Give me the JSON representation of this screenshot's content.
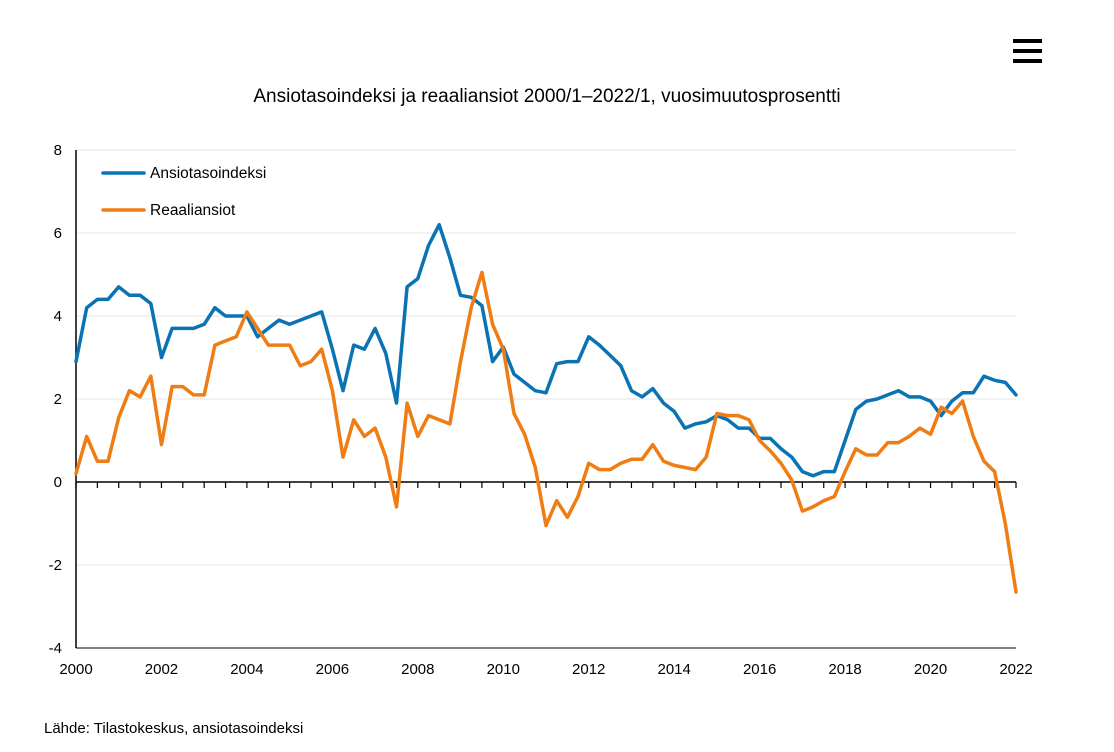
{
  "menu": {
    "icon": "hamburger-menu-icon"
  },
  "source": "Lähde: Tilastokeskus, ansiotasoindeksi",
  "chart_data": {
    "type": "line",
    "title": "Ansiotasoindeksi ja reaaliansiot 2000/1–2022/1, vuosimuutosprosentti",
    "xlabel": "",
    "ylabel": "",
    "xlim": [
      2000,
      2022
    ],
    "ylim": [
      -4,
      8
    ],
    "yticks": [
      -4,
      -2,
      0,
      2,
      4,
      6,
      8
    ],
    "xticks": [
      2000,
      2002,
      2004,
      2006,
      2008,
      2010,
      2012,
      2014,
      2016,
      2018,
      2020,
      2022
    ],
    "grid": "horizontal",
    "legend_position": "top-left",
    "series": [
      {
        "name": "Ansiotasoindeksi",
        "color": "#0a73b4",
        "x": [
          2000,
          2000.25,
          2000.5,
          2000.75,
          2001,
          2001.25,
          2001.5,
          2001.75,
          2002,
          2002.25,
          2002.5,
          2002.75,
          2003,
          2003.25,
          2003.5,
          2003.75,
          2004,
          2004.25,
          2004.5,
          2004.75,
          2005,
          2005.25,
          2005.5,
          2005.75,
          2006,
          2006.25,
          2006.5,
          2006.75,
          2007,
          2007.25,
          2007.5,
          2007.75,
          2008,
          2008.25,
          2008.5,
          2008.75,
          2009,
          2009.25,
          2009.5,
          2009.75,
          2010,
          2010.25,
          2010.5,
          2010.75,
          2011,
          2011.25,
          2011.5,
          2011.75,
          2012,
          2012.25,
          2012.5,
          2012.75,
          2013,
          2013.25,
          2013.5,
          2013.75,
          2014,
          2014.25,
          2014.5,
          2014.75,
          2015,
          2015.25,
          2015.5,
          2015.75,
          2016,
          2016.25,
          2016.5,
          2016.75,
          2017,
          2017.25,
          2017.5,
          2017.75,
          2018,
          2018.25,
          2018.5,
          2018.75,
          2019,
          2019.25,
          2019.5,
          2019.75,
          2020,
          2020.25,
          2020.5,
          2020.75,
          2021,
          2021.25,
          2021.5,
          2021.75,
          2022
        ],
        "values": [
          2.9,
          4.2,
          4.4,
          4.4,
          4.7,
          4.5,
          4.5,
          4.3,
          3.0,
          3.7,
          3.7,
          3.7,
          3.8,
          4.2,
          4.0,
          4.0,
          4.0,
          3.5,
          3.7,
          3.9,
          3.8,
          3.9,
          4.0,
          4.1,
          3.2,
          2.2,
          3.3,
          3.2,
          3.7,
          3.1,
          1.9,
          4.7,
          4.9,
          5.7,
          6.2,
          5.4,
          4.5,
          4.45,
          4.25,
          2.9,
          3.25,
          2.6,
          2.4,
          2.2,
          2.15,
          2.85,
          2.9,
          2.9,
          3.5,
          3.3,
          3.05,
          2.8,
          2.2,
          2.05,
          2.25,
          1.9,
          1.7,
          1.3,
          1.4,
          1.45,
          1.6,
          1.5,
          1.3,
          1.3,
          1.05,
          1.05,
          0.8,
          0.6,
          0.25,
          0.15,
          0.25,
          0.25,
          1.0,
          1.75,
          1.95,
          2.0,
          2.1,
          2.2,
          2.05,
          2.05,
          1.95,
          1.6,
          1.95,
          2.15,
          2.15,
          2.55,
          2.45,
          2.4,
          2.1
        ]
      },
      {
        "name": "Reaaliansiot",
        "color": "#ef7d14",
        "x": [
          2000,
          2000.25,
          2000.5,
          2000.75,
          2001,
          2001.25,
          2001.5,
          2001.75,
          2002,
          2002.25,
          2002.5,
          2002.75,
          2003,
          2003.25,
          2003.5,
          2003.75,
          2004,
          2004.25,
          2004.5,
          2004.75,
          2005,
          2005.25,
          2005.5,
          2005.75,
          2006,
          2006.25,
          2006.5,
          2006.75,
          2007,
          2007.25,
          2007.5,
          2007.75,
          2008,
          2008.25,
          2008.5,
          2008.75,
          2009,
          2009.25,
          2009.5,
          2009.75,
          2010,
          2010.25,
          2010.5,
          2010.75,
          2011,
          2011.25,
          2011.5,
          2011.75,
          2012,
          2012.25,
          2012.5,
          2012.75,
          2013,
          2013.25,
          2013.5,
          2013.75,
          2014,
          2014.25,
          2014.5,
          2014.75,
          2015,
          2015.25,
          2015.5,
          2015.75,
          2016,
          2016.25,
          2016.5,
          2016.75,
          2017,
          2017.25,
          2017.5,
          2017.75,
          2018,
          2018.25,
          2018.5,
          2018.75,
          2019,
          2019.25,
          2019.5,
          2019.75,
          2020,
          2020.25,
          2020.5,
          2020.75,
          2021,
          2021.25,
          2021.5,
          2021.75,
          2022
        ],
        "values": [
          0.2,
          1.1,
          0.5,
          0.5,
          1.55,
          2.2,
          2.05,
          2.55,
          0.9,
          2.3,
          2.3,
          2.1,
          2.1,
          3.3,
          3.4,
          3.5,
          4.1,
          3.7,
          3.3,
          3.3,
          3.3,
          2.8,
          2.9,
          3.2,
          2.2,
          0.6,
          1.5,
          1.1,
          1.3,
          0.6,
          -0.6,
          1.9,
          1.1,
          1.6,
          1.5,
          1.4,
          2.9,
          4.2,
          5.05,
          3.8,
          3.2,
          1.65,
          1.15,
          0.35,
          -1.05,
          -0.45,
          -0.85,
          -0.35,
          0.45,
          0.3,
          0.3,
          0.45,
          0.55,
          0.55,
          0.9,
          0.5,
          0.4,
          0.35,
          0.3,
          0.6,
          1.65,
          1.6,
          1.6,
          1.5,
          1.0,
          0.75,
          0.45,
          0.05,
          -0.7,
          -0.6,
          -0.45,
          -0.35,
          0.25,
          0.8,
          0.65,
          0.65,
          0.95,
          0.95,
          1.1,
          1.3,
          1.15,
          1.8,
          1.65,
          1.95,
          1.1,
          0.5,
          0.25,
          -1.0,
          -2.65
        ]
      }
    ]
  }
}
